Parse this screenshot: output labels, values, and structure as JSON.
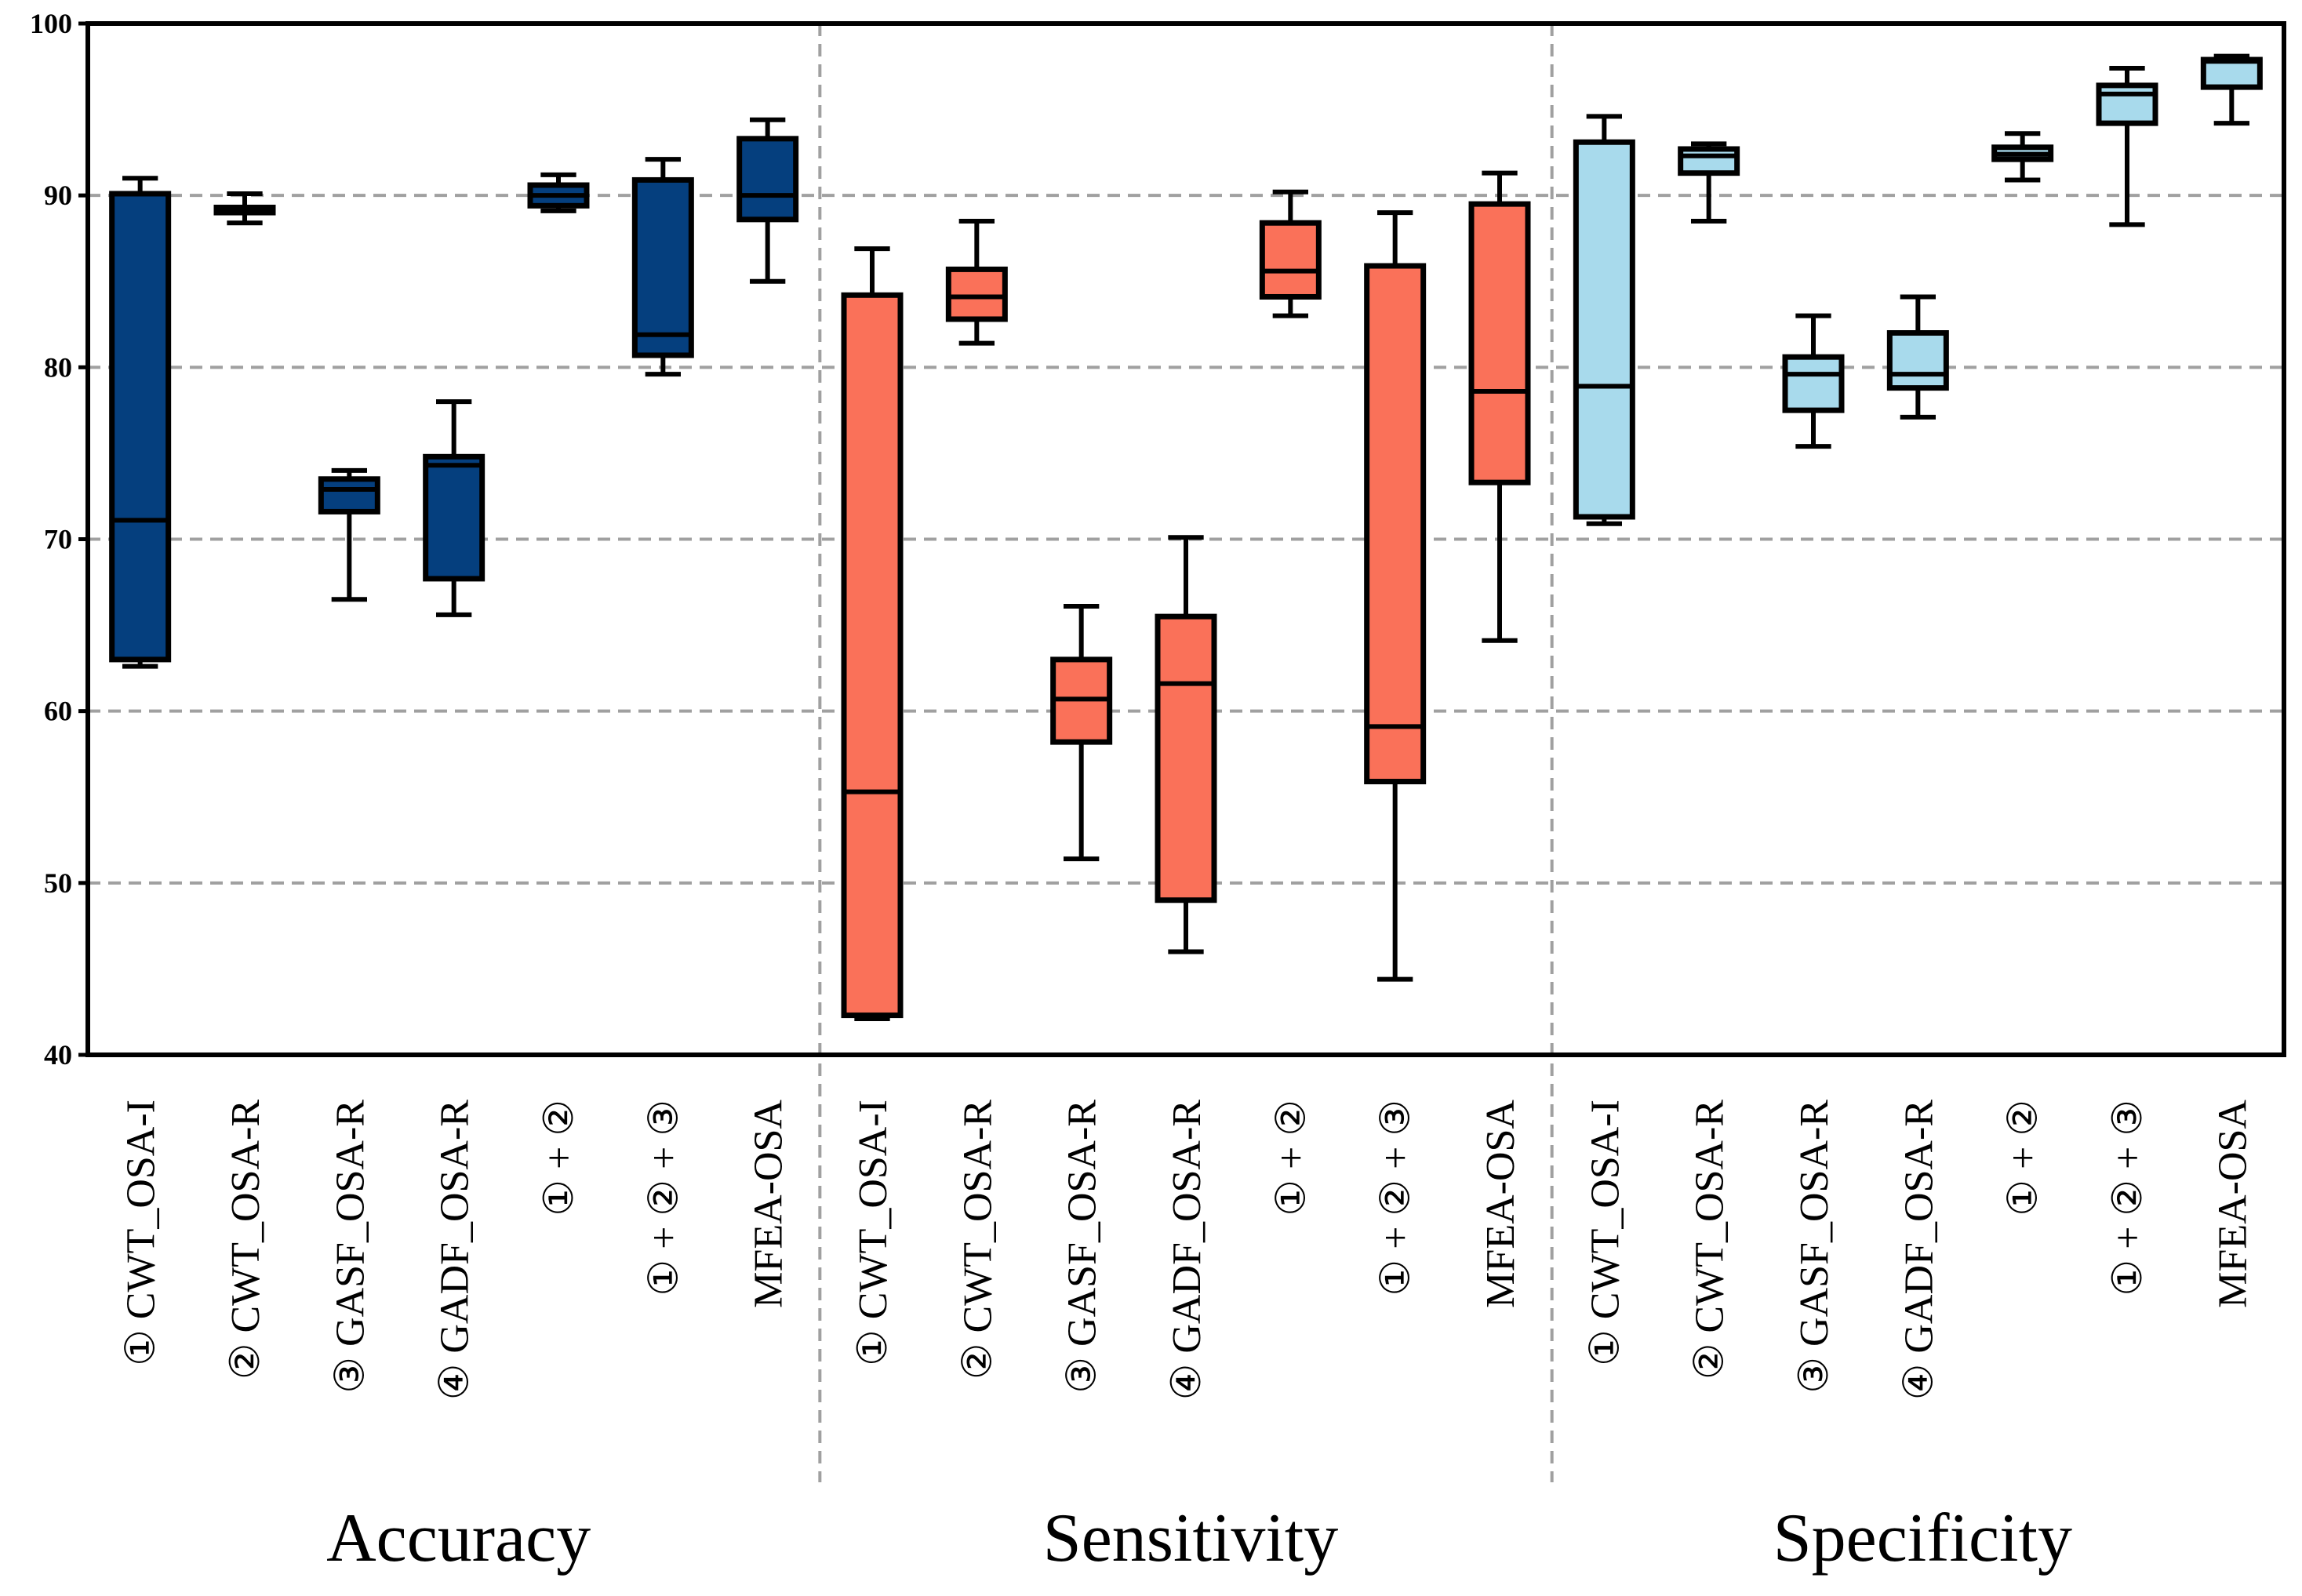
{
  "chart_data": {
    "type": "box",
    "title": "",
    "xlabel": "",
    "ylabel": "",
    "ylim": [
      40,
      100
    ],
    "yticks": [
      40,
      50,
      60,
      70,
      80,
      90,
      100
    ],
    "grid": "horizontal-dashed",
    "categories": [
      "① CWT_OSA-I",
      "② CWT_OSA-R",
      "③ GASF_OSA-R",
      "④ GADF_OSA-R",
      "① + ②",
      "① + ② + ③",
      "MFEA-OSA"
    ],
    "groups": [
      {
        "name": "Accuracy",
        "color": "#053F7E",
        "boxes": [
          {
            "label": "① CWT_OSA-I",
            "min": 62.6,
            "q1": 63.0,
            "median": 71.1,
            "q3": 90.1,
            "max": 91.0
          },
          {
            "label": "② CWT_OSA-R",
            "min": 88.4,
            "q1": 89.0,
            "median": 89.2,
            "q3": 89.3,
            "max": 90.1
          },
          {
            "label": "③ GASF_OSA-R",
            "min": 66.5,
            "q1": 71.6,
            "median": 72.9,
            "q3": 73.5,
            "max": 74.0
          },
          {
            "label": "④ GADF_OSA-R",
            "min": 65.6,
            "q1": 67.7,
            "median": 74.3,
            "q3": 74.8,
            "max": 78.0
          },
          {
            "label": "① + ②",
            "min": 89.1,
            "q1": 89.4,
            "median": 90.0,
            "q3": 90.6,
            "max": 91.2
          },
          {
            "label": "① + ② + ③",
            "min": 79.6,
            "q1": 80.7,
            "median": 81.9,
            "q3": 90.9,
            "max": 92.1
          },
          {
            "label": "MFEA-OSA",
            "min": 85.0,
            "q1": 88.6,
            "median": 90.0,
            "q3": 93.3,
            "max": 94.4
          }
        ]
      },
      {
        "name": "Sensitivity",
        "color": "#FA7159",
        "boxes": [
          {
            "label": "① CWT_OSA-I",
            "min": 42.1,
            "q1": 42.3,
            "median": 55.3,
            "q3": 84.2,
            "max": 86.9
          },
          {
            "label": "② CWT_OSA-R",
            "min": 81.4,
            "q1": 82.8,
            "median": 84.1,
            "q3": 85.7,
            "max": 88.5
          },
          {
            "label": "③ GASF_OSA-R",
            "min": 51.4,
            "q1": 58.2,
            "median": 60.7,
            "q3": 63.0,
            "max": 66.1
          },
          {
            "label": "④ GADF_OSA-R",
            "min": 46.0,
            "q1": 49.0,
            "median": 61.6,
            "q3": 65.5,
            "max": 70.1
          },
          {
            "label": "① + ②",
            "min": 83.0,
            "q1": 84.1,
            "median": 85.6,
            "q3": 88.4,
            "max": 90.2
          },
          {
            "label": "① + ② + ③",
            "min": 44.4,
            "q1": 55.9,
            "median": 59.1,
            "q3": 85.9,
            "max": 89.0
          },
          {
            "label": "MFEA-OSA",
            "min": 64.1,
            "q1": 73.3,
            "median": 78.6,
            "q3": 89.5,
            "max": 91.3
          }
        ]
      },
      {
        "name": "Specificity",
        "color": "#A8DAEC",
        "boxes": [
          {
            "label": "① CWT_OSA-I",
            "min": 70.9,
            "q1": 71.3,
            "median": 78.9,
            "q3": 93.1,
            "max": 94.6
          },
          {
            "label": "② CWT_OSA-R",
            "min": 88.5,
            "q1": 91.3,
            "median": 92.3,
            "q3": 92.7,
            "max": 93.0
          },
          {
            "label": "③ GASF_OSA-R",
            "min": 75.4,
            "q1": 77.5,
            "median": 79.6,
            "q3": 80.6,
            "max": 83.0
          },
          {
            "label": "④ GADF_OSA-R",
            "min": 77.1,
            "q1": 78.8,
            "median": 79.6,
            "q3": 82.0,
            "max": 84.1
          },
          {
            "label": "① + ②",
            "min": 90.9,
            "q1": 92.1,
            "median": 92.4,
            "q3": 92.8,
            "max": 93.6
          },
          {
            "label": "① + ② + ③",
            "min": 88.3,
            "q1": 94.2,
            "median": 95.9,
            "q3": 96.4,
            "max": 97.4
          },
          {
            "label": "MFEA-OSA",
            "min": 94.2,
            "q1": 96.3,
            "median": 97.8,
            "q3": 97.9,
            "max": 98.1
          }
        ]
      }
    ]
  }
}
